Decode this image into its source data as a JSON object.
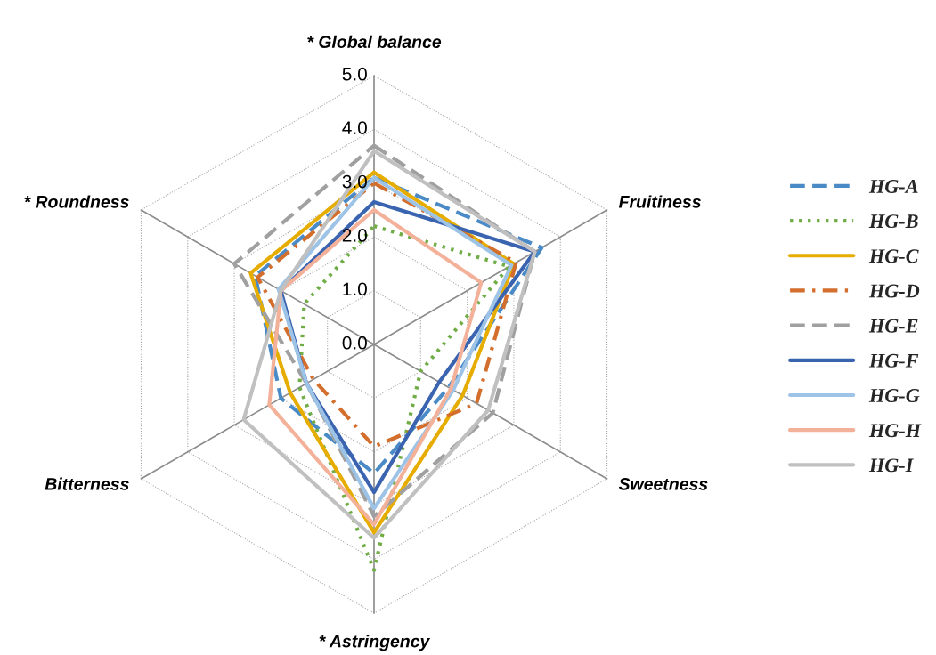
{
  "chart_data": {
    "type": "radar",
    "categories": [
      "* Global balance",
      "Fruitiness",
      "Sweetness",
      "* Astringency",
      "Bitterness",
      "* Roundness"
    ],
    "ylim": [
      0,
      5
    ],
    "yticks": [
      {
        "value": 0,
        "label": "0.0"
      },
      {
        "value": 1,
        "label": "1.0"
      },
      {
        "value": 2,
        "label": "2.0"
      },
      {
        "value": 3,
        "label": "3.0"
      },
      {
        "value": 4,
        "label": "4.0"
      },
      {
        "value": 5,
        "label": "5.0"
      }
    ],
    "grid": true,
    "legend": "right",
    "series": [
      {
        "name": "HG-A",
        "color": "#4a8ac6",
        "line_style": "dashed",
        "values": [
          3.1,
          3.6,
          1.6,
          2.4,
          2.0,
          2.55
        ]
      },
      {
        "name": "HG-B",
        "color": "#70ad47",
        "line_style": "dotted",
        "values": [
          2.2,
          2.9,
          1.0,
          4.2,
          1.6,
          1.5
        ]
      },
      {
        "name": "HG-C",
        "color": "#e6ad00",
        "line_style": "solid",
        "values": [
          3.2,
          3.0,
          1.9,
          3.5,
          1.8,
          2.65
        ]
      },
      {
        "name": "HG-D",
        "color": "#d36e2c",
        "line_style": "dashdot",
        "values": [
          3.0,
          3.05,
          2.2,
          1.9,
          1.3,
          2.5
        ]
      },
      {
        "name": "HG-E",
        "color": "#a0a0a0",
        "line_style": "dashed",
        "values": [
          3.7,
          3.45,
          2.55,
          3.2,
          1.45,
          3.0
        ]
      },
      {
        "name": "HG-F",
        "color": "#3a63b0",
        "line_style": "solid",
        "values": [
          2.65,
          3.45,
          1.4,
          2.75,
          1.45,
          2.0
        ]
      },
      {
        "name": "HG-G",
        "color": "#9dc3e6",
        "line_style": "solid",
        "values": [
          3.1,
          2.95,
          1.7,
          3.05,
          1.45,
          2.05
        ]
      },
      {
        "name": "HG-H",
        "color": "#f4b19a",
        "line_style": "solid",
        "values": [
          2.5,
          2.3,
          1.65,
          3.35,
          2.25,
          2.0
        ]
      },
      {
        "name": "HG-I",
        "color": "#c0c0c0",
        "line_style": "solid",
        "values": [
          3.6,
          3.45,
          2.45,
          3.6,
          2.8,
          2.0
        ]
      }
    ]
  }
}
